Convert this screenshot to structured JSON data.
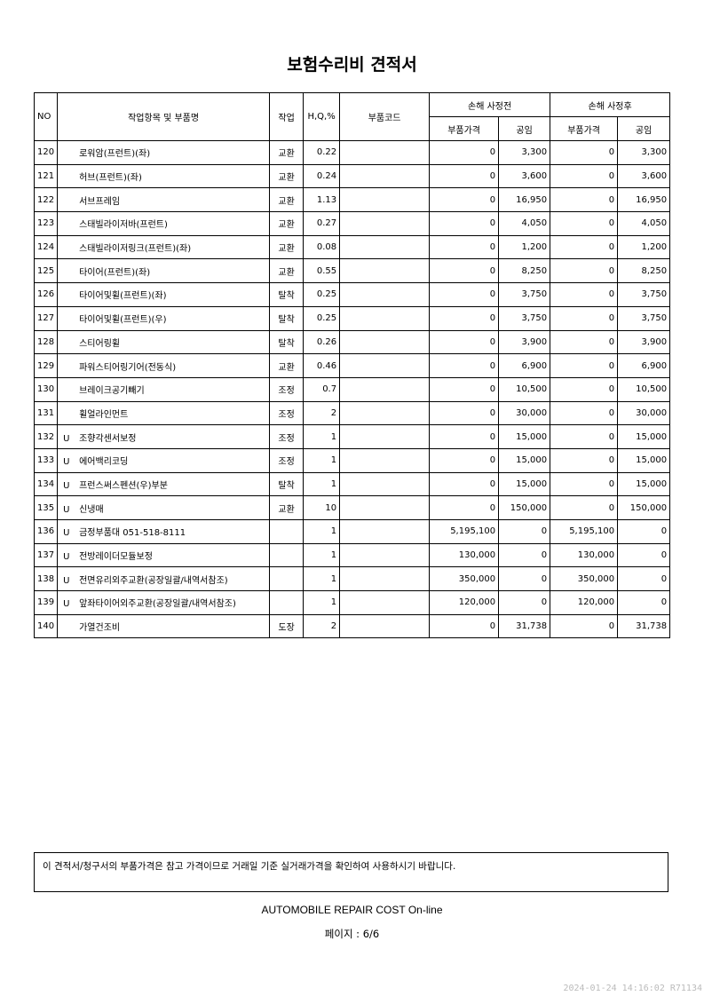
{
  "title": "보험수리비 견적서",
  "headers": {
    "no": "NO",
    "name": "작업항목 및 부품명",
    "work": "작업",
    "hq": "H,Q,%",
    "code": "부품코드",
    "before": "손해 사정전",
    "after": "손해 사정후",
    "parts_price": "부품가격",
    "labor": "공임"
  },
  "rows": [
    [
      "120",
      "",
      "로워암(프런트)(좌)",
      "교환",
      "0.22",
      "",
      "0",
      "3,300",
      "0",
      "3,300"
    ],
    [
      "121",
      "",
      "허브(프런트)(좌)",
      "교환",
      "0.24",
      "",
      "0",
      "3,600",
      "0",
      "3,600"
    ],
    [
      "122",
      "",
      "서브프레임",
      "교환",
      "1.13",
      "",
      "0",
      "16,950",
      "0",
      "16,950"
    ],
    [
      "123",
      "",
      "스태빌라이저바(프런트)",
      "교환",
      "0.27",
      "",
      "0",
      "4,050",
      "0",
      "4,050"
    ],
    [
      "124",
      "",
      "스태빌라이저링크(프런트)(좌)",
      "교환",
      "0.08",
      "",
      "0",
      "1,200",
      "0",
      "1,200"
    ],
    [
      "125",
      "",
      "타이어(프런트)(좌)",
      "교환",
      "0.55",
      "",
      "0",
      "8,250",
      "0",
      "8,250"
    ],
    [
      "126",
      "",
      "타이어및휠(프런트)(좌)",
      "탈착",
      "0.25",
      "",
      "0",
      "3,750",
      "0",
      "3,750"
    ],
    [
      "127",
      "",
      "타이어및휠(프런트)(우)",
      "탈착",
      "0.25",
      "",
      "0",
      "3,750",
      "0",
      "3,750"
    ],
    [
      "128",
      "",
      "스티어링휠",
      "탈착",
      "0.26",
      "",
      "0",
      "3,900",
      "0",
      "3,900"
    ],
    [
      "129",
      "",
      "파워스티어링기어(전동식)",
      "교환",
      "0.46",
      "",
      "0",
      "6,900",
      "0",
      "6,900"
    ],
    [
      "130",
      "",
      "브레이크공기빼기",
      "조정",
      "0.7",
      "",
      "0",
      "10,500",
      "0",
      "10,500"
    ],
    [
      "131",
      "",
      "휠얼라인먼트",
      "조정",
      "2",
      "",
      "0",
      "30,000",
      "0",
      "30,000"
    ],
    [
      "132",
      "U",
      "조향각센서보정",
      "조정",
      "1",
      "",
      "0",
      "15,000",
      "0",
      "15,000"
    ],
    [
      "133",
      "U",
      "에어백리코딩",
      "조정",
      "1",
      "",
      "0",
      "15,000",
      "0",
      "15,000"
    ],
    [
      "134",
      "U",
      "프런스써스펜션(우)부분",
      "탈착",
      "1",
      "",
      "0",
      "15,000",
      "0",
      "15,000"
    ],
    [
      "135",
      "U",
      "신냉매",
      "교환",
      "10",
      "",
      "0",
      "150,000",
      "0",
      "150,000"
    ],
    [
      "136",
      "U",
      "금정부품대 051-518-8111",
      "",
      "1",
      "",
      "5,195,100",
      "0",
      "5,195,100",
      "0"
    ],
    [
      "137",
      "U",
      "전방레이더모듈보정",
      "",
      "1",
      "",
      "130,000",
      "0",
      "130,000",
      "0"
    ],
    [
      "138",
      "U",
      "전면유리외주교환(공장일괄/내역서참조)",
      "",
      "1",
      "",
      "350,000",
      "0",
      "350,000",
      "0"
    ],
    [
      "139",
      "U",
      "앞좌타이어외주교환(공장일괄/내역서참조)",
      "",
      "1",
      "",
      "120,000",
      "0",
      "120,000",
      "0"
    ],
    [
      "140",
      "",
      "가열건조비",
      "도장",
      "2",
      "",
      "0",
      "31,738",
      "0",
      "31,738"
    ]
  ],
  "notice": "이 견적서/청구서의 부품가격은 참고 가격이므로 거래일 기준 실거래가격을 확인하여 사용하시기 바랍니다.",
  "footer": "AUTOMOBILE REPAIR COST On-line",
  "page": "페이지 : 6/6",
  "timestamp": "2024-01-24 14:16:02 R71134"
}
